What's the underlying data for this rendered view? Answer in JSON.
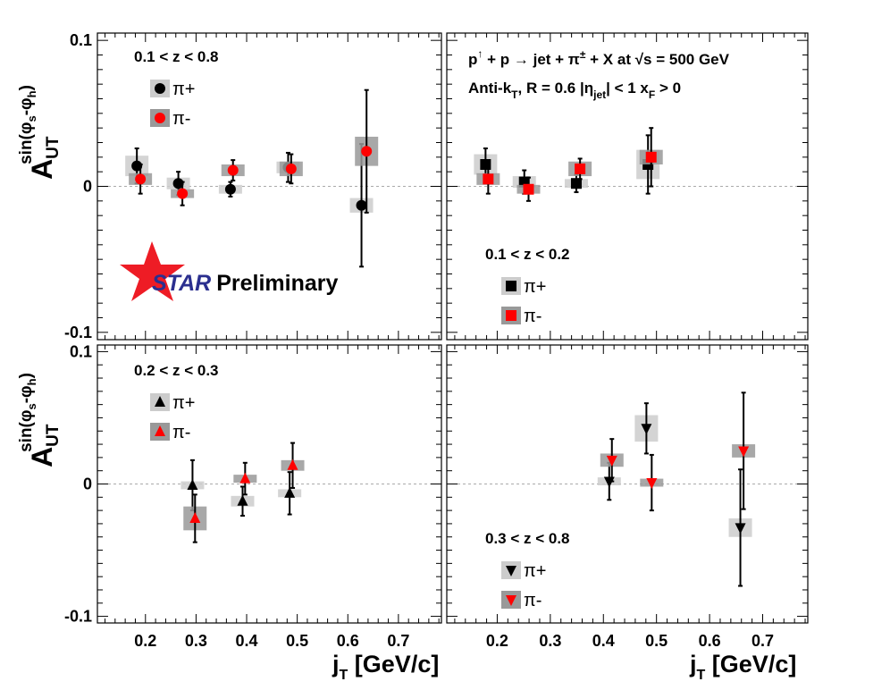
{
  "header": {
    "process": "p↑ + p → jet + π± + X at √s = 500 GeV",
    "cuts": "Anti-kT, R = 0.6    |ηjet| < 1    xF > 0"
  },
  "logo": {
    "label": "STAR Preliminary",
    "star_color": "#ee1c25",
    "text_color": "#2b2f8f"
  },
  "colors": {
    "pi_plus": "#000000",
    "pi_minus": "#ff0000",
    "zero_line": "#aaaaaa",
    "sys_light": "#cccccc",
    "sys_dark": "#999999"
  },
  "chart_data": [
    {
      "type": "scatter",
      "panel": "top-left",
      "z_range": "0.1 < z < 0.8",
      "marker": "circle",
      "xlim": [
        0.105,
        0.785
      ],
      "ylim": [
        -0.105,
        0.105
      ],
      "xticks": [
        "0.2",
        "0.3",
        "0.4",
        "0.5",
        "0.6",
        "0.7"
      ],
      "yticks": [
        "-0.1",
        "0",
        "0.1"
      ],
      "ylabel": "A_UT^sin(φs-φh)",
      "legend": {
        "position": "top-left",
        "entries": [
          "π+",
          "π-"
        ]
      },
      "series": [
        {
          "name": "π+",
          "points": [
            {
              "x": 0.183,
              "y": 0.014,
              "err": 0.012,
              "sys": 0.007
            },
            {
              "x": 0.265,
              "y": 0.002,
              "err": 0.008,
              "sys": 0.004
            },
            {
              "x": 0.368,
              "y": -0.002,
              "err": 0.005,
              "sys": 0.003
            },
            {
              "x": 0.482,
              "y": 0.013,
              "err": 0.01,
              "sys": 0.004
            },
            {
              "x": 0.627,
              "y": -0.013,
              "err": 0.042,
              "sys": 0.005
            }
          ]
        },
        {
          "name": "π-",
          "points": [
            {
              "x": 0.19,
              "y": 0.005,
              "err": 0.01,
              "sys": 0.004
            },
            {
              "x": 0.273,
              "y": -0.005,
              "err": 0.008,
              "sys": 0.003
            },
            {
              "x": 0.373,
              "y": 0.011,
              "err": 0.007,
              "sys": 0.004
            },
            {
              "x": 0.488,
              "y": 0.012,
              "err": 0.01,
              "sys": 0.005
            },
            {
              "x": 0.637,
              "y": 0.024,
              "err": 0.042,
              "sys": 0.01
            }
          ]
        }
      ]
    },
    {
      "type": "scatter",
      "panel": "top-right",
      "z_range": "0.1 < z < 0.2",
      "marker": "square",
      "xlim": [
        0.105,
        0.785
      ],
      "ylim": [
        -0.105,
        0.105
      ],
      "xticks": [
        "0.2",
        "0.3",
        "0.4",
        "0.5",
        "0.6",
        "0.7"
      ],
      "yticks": [],
      "legend": {
        "position": "bottom-left",
        "entries": [
          "π+",
          "π-"
        ]
      },
      "series": [
        {
          "name": "π+",
          "points": [
            {
              "x": 0.178,
              "y": 0.015,
              "err": 0.011,
              "sys": 0.007
            },
            {
              "x": 0.251,
              "y": 0.003,
              "err": 0.008,
              "sys": 0.004
            },
            {
              "x": 0.349,
              "y": 0.002,
              "err": 0.006,
              "sys": 0.003
            },
            {
              "x": 0.484,
              "y": 0.015,
              "err": 0.02,
              "sys": 0.01
            }
          ]
        },
        {
          "name": "π-",
          "points": [
            {
              "x": 0.183,
              "y": 0.005,
              "err": 0.01,
              "sys": 0.004
            },
            {
              "x": 0.259,
              "y": -0.002,
              "err": 0.008,
              "sys": 0.003
            },
            {
              "x": 0.356,
              "y": 0.012,
              "err": 0.007,
              "sys": 0.005
            },
            {
              "x": 0.49,
              "y": 0.02,
              "err": 0.02,
              "sys": 0.005
            }
          ]
        }
      ]
    },
    {
      "type": "scatter",
      "panel": "bottom-left",
      "z_range": "0.2 < z < 0.3",
      "marker": "triangle-up",
      "xlim": [
        0.105,
        0.785
      ],
      "ylim": [
        -0.105,
        0.105
      ],
      "xticks": [
        "0.2",
        "0.3",
        "0.4",
        "0.5",
        "0.6",
        "0.7"
      ],
      "yticks": [
        "-0.1",
        "0",
        "0.1"
      ],
      "xlabel": "jT [GeV/c]",
      "ylabel": "A_UT^sin(φs-φh)",
      "legend": {
        "position": "top-left",
        "entries": [
          "π+",
          "π-"
        ]
      },
      "series": [
        {
          "name": "π+",
          "points": [
            {
              "x": 0.293,
              "y": -0.001,
              "err": 0.019,
              "sys": 0.003
            },
            {
              "x": 0.392,
              "y": -0.013,
              "err": 0.011,
              "sys": 0.004
            },
            {
              "x": 0.485,
              "y": -0.007,
              "err": 0.016,
              "sys": 0.003
            }
          ]
        },
        {
          "name": "π-",
          "points": [
            {
              "x": 0.298,
              "y": -0.026,
              "err": 0.018,
              "sys": 0.009
            },
            {
              "x": 0.397,
              "y": 0.004,
              "err": 0.012,
              "sys": 0.003
            },
            {
              "x": 0.491,
              "y": 0.014,
              "err": 0.017,
              "sys": 0.004
            }
          ]
        }
      ]
    },
    {
      "type": "scatter",
      "panel": "bottom-right",
      "z_range": "0.3 < z < 0.8",
      "marker": "triangle-down",
      "xlim": [
        0.105,
        0.785
      ],
      "ylim": [
        -0.105,
        0.105
      ],
      "xticks": [
        "0.2",
        "0.3",
        "0.4",
        "0.5",
        "0.6",
        "0.7"
      ],
      "yticks": [],
      "xlabel": "jT [GeV/c]",
      "legend": {
        "position": "bottom-left",
        "entries": [
          "π+",
          "π-"
        ]
      },
      "series": [
        {
          "name": "π+",
          "points": [
            {
              "x": 0.411,
              "y": 0.002,
              "err": 0.014,
              "sys": 0.003
            },
            {
              "x": 0.481,
              "y": 0.042,
              "err": 0.019,
              "sys": 0.01
            },
            {
              "x": 0.658,
              "y": -0.033,
              "err": 0.044,
              "sys": 0.007
            }
          ]
        },
        {
          "name": "π-",
          "points": [
            {
              "x": 0.416,
              "y": 0.018,
              "err": 0.016,
              "sys": 0.005
            },
            {
              "x": 0.491,
              "y": 0.001,
              "err": 0.021,
              "sys": 0.003
            },
            {
              "x": 0.664,
              "y": 0.025,
              "err": 0.044,
              "sys": 0.005
            }
          ]
        }
      ]
    }
  ]
}
